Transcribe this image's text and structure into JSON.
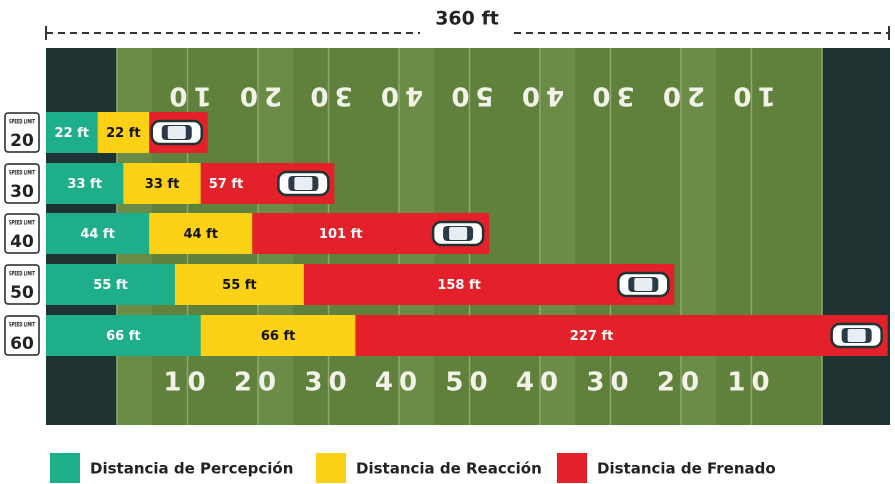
{
  "chart_data": {
    "type": "stacked-bar-horizontal",
    "title": "360 ft",
    "sign_text": "SPEED LIMIT",
    "categories": [
      "20",
      "30",
      "40",
      "50",
      "60"
    ],
    "field_numbers": [
      "10",
      "20",
      "30",
      "40",
      "50",
      "40",
      "30",
      "20",
      "10"
    ],
    "xlim": [
      0,
      360
    ],
    "series": [
      {
        "name": "Distancia de Percepción",
        "color": "#1fae8a",
        "values": [
          22,
          33,
          44,
          55,
          66
        ],
        "value_labels": [
          "22 ft",
          "33 ft",
          "44 ft",
          "55 ft",
          "66 ft"
        ]
      },
      {
        "name": "Distancia de Reacción",
        "color": "#fcd116",
        "values": [
          22,
          33,
          44,
          55,
          66
        ],
        "value_labels": [
          "22 ft",
          "33 ft",
          "44 ft",
          "55 ft",
          "66 ft"
        ]
      },
      {
        "name": "Distancia de Frenado",
        "color": "#e4202a",
        "values": [
          25,
          57,
          101,
          158,
          227
        ],
        "value_labels": [
          null,
          "57 ft",
          "101 ft",
          "158 ft",
          "227 ft"
        ]
      }
    ]
  }
}
